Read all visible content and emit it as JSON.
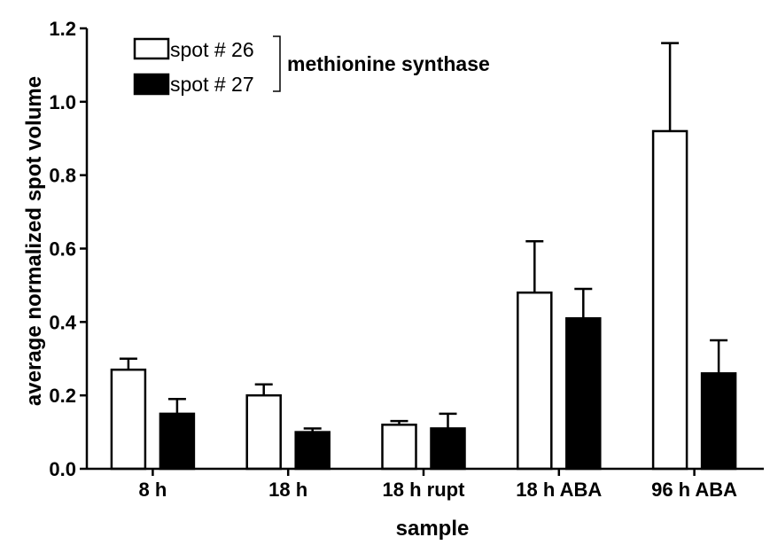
{
  "chart_data": {
    "type": "bar",
    "title": "",
    "xlabel": "sample",
    "ylabel": "average normalized spot volume",
    "ylim": [
      0,
      1.2
    ],
    "yticks": [
      "0.0",
      "0.2",
      "0.4",
      "0.6",
      "0.8",
      "1.0",
      "1.2"
    ],
    "categories": [
      "8 h",
      "18 h",
      "18 h rupt",
      "18 h ABA",
      "96 h ABA"
    ],
    "series": [
      {
        "name": "spot # 26",
        "fill": "#ffffff",
        "values": [
          0.27,
          0.2,
          0.12,
          0.48,
          0.92
        ],
        "errors": [
          0.03,
          0.03,
          0.01,
          0.14,
          0.24
        ]
      },
      {
        "name": "spot # 27",
        "fill": "#000000",
        "values": [
          0.15,
          0.1,
          0.11,
          0.41,
          0.26
        ],
        "errors": [
          0.04,
          0.01,
          0.04,
          0.08,
          0.09
        ]
      }
    ],
    "legend": {
      "position": "top-left",
      "group_label": "methionine synthase"
    },
    "grid": false,
    "colors": {
      "axis": "#000000",
      "bar_outline": "#000000"
    }
  }
}
